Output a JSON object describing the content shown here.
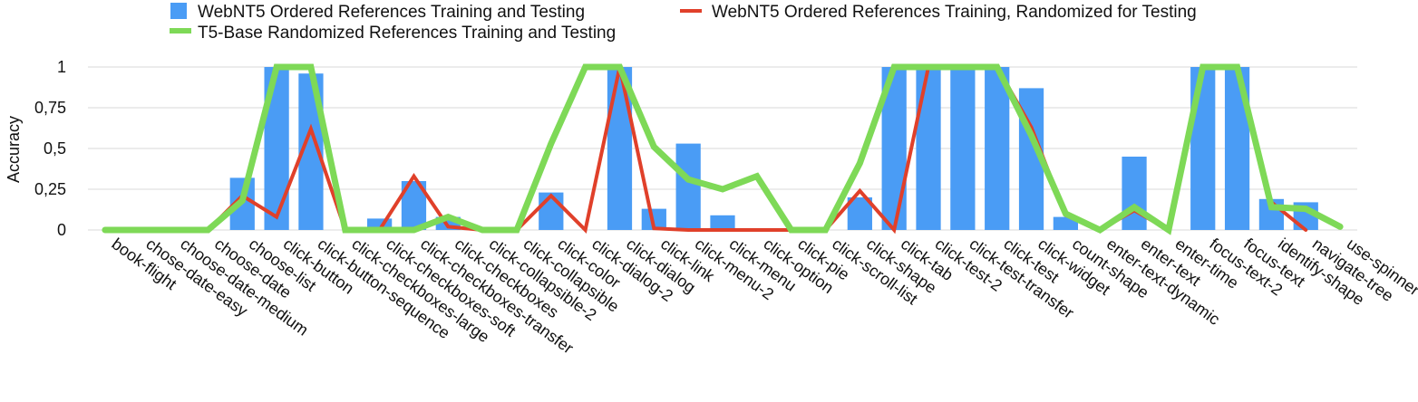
{
  "chart_data": {
    "type": "bar",
    "title": "",
    "xlabel": "",
    "ylabel": "Accuracy",
    "ylim": [
      0,
      1
    ],
    "yticks": [
      "0",
      "0,25",
      "0,5",
      "0,75",
      "1"
    ],
    "grid": true,
    "legend_position": "top",
    "categories": [
      "book-flight",
      "chose-date-easy",
      "choose-date-medium",
      "choose-date",
      "choose-list",
      "click-button",
      "click-button-sequence",
      "click-checkboxes-large",
      "click-checkboxes-soft",
      "click-checkboxes-transfer",
      "click-checkboxes",
      "click-collapsible-2",
      "click-collapsible",
      "click-color",
      "click-dialog-2",
      "click-dialog",
      "click-link",
      "click-menu-2",
      "click-menu",
      "click-option",
      "click-pie",
      "click-scroll-list",
      "click-shape",
      "click-tab",
      "click-test-2",
      "click-test-transfer",
      "click-test",
      "click-widget",
      "count-shape",
      "enter-text-dynamic",
      "enter-text",
      "enter-time",
      "focus-text-2",
      "focus-text",
      "identify-shape",
      "navigate-tree",
      "use-spinner"
    ],
    "series": [
      {
        "name": "WebNT5 Ordered References Training and Testing",
        "kind": "bar",
        "color": "#4a9cf5",
        "values": [
          0,
          0,
          0,
          0,
          0.32,
          1,
          0.96,
          0,
          0.07,
          0.3,
          0.08,
          0,
          0,
          0.23,
          0,
          1,
          0.13,
          0.53,
          0.09,
          0,
          0,
          0,
          0.2,
          1,
          1,
          1,
          1,
          0.87,
          0.08,
          0,
          0.45,
          0,
          1,
          1,
          0.19,
          0.17,
          0
        ]
      },
      {
        "name": "WebNT5 Ordered References Training, Randomized for Testing",
        "kind": "line",
        "color": "#e0402a",
        "values": [
          0,
          0,
          0,
          0,
          0.21,
          0.08,
          0.62,
          0,
          0,
          0.33,
          0.02,
          0,
          0,
          0.21,
          0,
          1,
          0.01,
          0,
          0,
          0,
          0,
          0,
          0.24,
          0,
          1,
          1,
          1,
          0.63,
          0.09,
          0,
          0.12,
          0,
          1,
          1,
          0.17,
          0,
          null
        ]
      },
      {
        "name": "T5-Base Randomized References Training and Testing",
        "kind": "line",
        "color": "#7ed957",
        "values": [
          0,
          0,
          0,
          0,
          0.18,
          1,
          1,
          0,
          0,
          0,
          0.08,
          0,
          0,
          0.53,
          1,
          1,
          0.51,
          0.31,
          0.25,
          0.33,
          0,
          0,
          0.41,
          1,
          1,
          1,
          1,
          0.58,
          0.1,
          0,
          0.14,
          0,
          1,
          1,
          0.14,
          0.13,
          0.02
        ]
      }
    ]
  }
}
